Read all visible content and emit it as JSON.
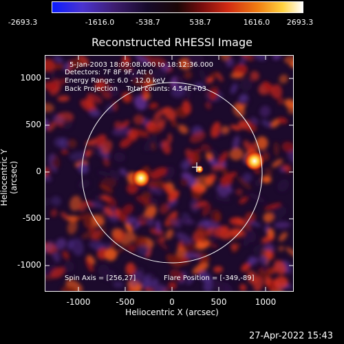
{
  "colorbar": {
    "ticks": [
      "-2693.3",
      "-1616.0",
      "-538.7",
      "538.7",
      "1616.0",
      "2693.3"
    ]
  },
  "image": {
    "title": "Reconstructed RHESSI Image",
    "annotations": [
      "5-Jan-2003 18:09:08.000 to 18:12:36.000",
      "Detectors: 7F 8F 9F, Att 0",
      "Energy Range: 6.0 - 12.0 keV",
      "Back Projection    Total counts: 4.54E+03"
    ],
    "spin_axis": "Spin Axis = [256,27]",
    "flare_position": "Flare Position = [-349,-89]",
    "xlabel": "Heliocentric X (arcsec)",
    "ylabel": "Heliocentric Y (arcsec)",
    "xticks": [
      "-1000",
      "-500",
      "0",
      "500",
      "1000"
    ],
    "yticks": [
      "1000",
      "500",
      "0",
      "-500",
      "-1000"
    ]
  },
  "timestamp": "27-Apr-2022 15:43"
}
